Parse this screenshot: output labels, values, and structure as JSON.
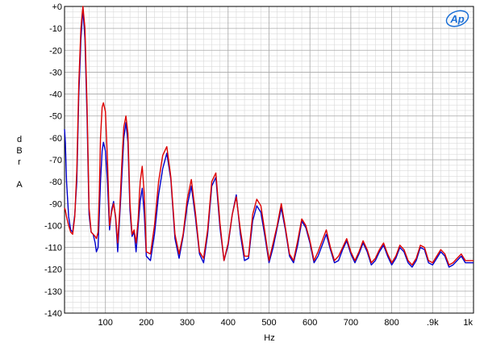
{
  "chart_data": {
    "type": "line",
    "title": "",
    "logo": "Ap",
    "xlabel": "Hz",
    "ylabel_lines": [
      "d",
      "B",
      "r",
      "",
      "A"
    ],
    "xlim": [
      0,
      1000
    ],
    "ylim": [
      -140,
      0
    ],
    "grid": true,
    "x_ticks": [
      {
        "value": 100,
        "label": "100"
      },
      {
        "value": 200,
        "label": "200"
      },
      {
        "value": 300,
        "label": "300"
      },
      {
        "value": 400,
        "label": "400"
      },
      {
        "value": 500,
        "label": "500"
      },
      {
        "value": 600,
        "label": "600"
      },
      {
        "value": 700,
        "label": "700"
      },
      {
        "value": 800,
        "label": "800"
      },
      {
        "value": 900,
        "label": ".9k"
      },
      {
        "value": 1000,
        "label": "1k"
      }
    ],
    "y_ticks": [
      {
        "value": 0,
        "label": "+0"
      },
      {
        "value": -10,
        "label": "-10"
      },
      {
        "value": -20,
        "label": "-20"
      },
      {
        "value": -30,
        "label": "-30"
      },
      {
        "value": -40,
        "label": "-40"
      },
      {
        "value": -50,
        "label": "-50"
      },
      {
        "value": -60,
        "label": "-60"
      },
      {
        "value": -70,
        "label": "-70"
      },
      {
        "value": -80,
        "label": "-80"
      },
      {
        "value": -90,
        "label": "-90"
      },
      {
        "value": -100,
        "label": "-100"
      },
      {
        "value": -110,
        "label": "-110"
      },
      {
        "value": -120,
        "label": "-120"
      },
      {
        "value": -130,
        "label": "-130"
      },
      {
        "value": -140,
        "label": "-140"
      }
    ],
    "series": [
      {
        "color": "#0000cc",
        "x": [
          0,
          2,
          5,
          10,
          15,
          20,
          25,
          30,
          35,
          40,
          45,
          50,
          55,
          60,
          65,
          70,
          75,
          78,
          82,
          85,
          88,
          92,
          95,
          100,
          105,
          110,
          115,
          120,
          125,
          130,
          135,
          140,
          145,
          150,
          155,
          160,
          165,
          170,
          175,
          180,
          185,
          190,
          195,
          200,
          210,
          220,
          230,
          240,
          250,
          260,
          270,
          280,
          290,
          300,
          310,
          320,
          330,
          340,
          350,
          360,
          370,
          380,
          390,
          400,
          410,
          420,
          430,
          440,
          450,
          460,
          470,
          480,
          490,
          500,
          510,
          520,
          530,
          540,
          550,
          560,
          570,
          580,
          590,
          600,
          610,
          620,
          630,
          640,
          650,
          660,
          670,
          680,
          690,
          700,
          710,
          720,
          730,
          740,
          750,
          760,
          770,
          780,
          790,
          800,
          810,
          820,
          830,
          840,
          850,
          860,
          870,
          880,
          890,
          900,
          910,
          920,
          930,
          940,
          950,
          960,
          970,
          980,
          990,
          1000
        ],
        "y": [
          -56,
          -62,
          -80,
          -96,
          -102,
          -103,
          -95,
          -80,
          -40,
          -15,
          -1,
          -15,
          -50,
          -95,
          -103,
          -104,
          -108,
          -112,
          -110,
          -95,
          -80,
          -66,
          -62,
          -66,
          -80,
          -102,
          -93,
          -89,
          -97,
          -112,
          -96,
          -78,
          -60,
          -53,
          -62,
          -93,
          -105,
          -103,
          -112,
          -100,
          -89,
          -83,
          -95,
          -114,
          -116,
          -104,
          -86,
          -74,
          -67,
          -79,
          -106,
          -115,
          -105,
          -91,
          -82,
          -96,
          -113,
          -117,
          -104,
          -82,
          -78,
          -101,
          -116,
          -109,
          -95,
          -86,
          -104,
          -116,
          -115,
          -98,
          -91,
          -94,
          -105,
          -117,
          -110,
          -101,
          -92,
          -102,
          -114,
          -117,
          -109,
          -98,
          -101,
          -108,
          -117,
          -114,
          -109,
          -104,
          -111,
          -117,
          -116,
          -111,
          -107,
          -113,
          -117,
          -113,
          -108,
          -112,
          -118,
          -116,
          -112,
          -109,
          -114,
          -118,
          -115,
          -110,
          -112,
          -117,
          -119,
          -116,
          -110,
          -111,
          -117,
          -118,
          -115,
          -112,
          -114,
          -119,
          -118,
          -116,
          -114,
          -117,
          -117,
          -117
        ]
      },
      {
        "color": "#dd0000",
        "x": [
          0,
          2,
          5,
          10,
          15,
          20,
          25,
          30,
          35,
          40,
          45,
          50,
          55,
          60,
          65,
          70,
          75,
          78,
          82,
          85,
          88,
          92,
          95,
          100,
          105,
          110,
          115,
          120,
          125,
          130,
          135,
          140,
          145,
          150,
          155,
          160,
          165,
          170,
          175,
          180,
          185,
          190,
          195,
          200,
          210,
          220,
          230,
          240,
          250,
          260,
          270,
          280,
          290,
          300,
          310,
          320,
          330,
          340,
          350,
          360,
          370,
          380,
          390,
          400,
          410,
          420,
          430,
          440,
          450,
          460,
          470,
          480,
          490,
          500,
          510,
          520,
          530,
          540,
          550,
          560,
          570,
          580,
          590,
          600,
          610,
          620,
          630,
          640,
          650,
          660,
          670,
          680,
          690,
          700,
          710,
          720,
          730,
          740,
          750,
          760,
          770,
          780,
          790,
          800,
          810,
          820,
          830,
          840,
          850,
          860,
          870,
          880,
          890,
          900,
          910,
          920,
          930,
          940,
          950,
          960,
          970,
          980,
          990,
          1000
        ],
        "y": [
          -92,
          -93,
          -96,
          -100,
          -103,
          -104,
          -96,
          -75,
          -35,
          -10,
          0,
          -10,
          -45,
          -92,
          -103,
          -104,
          -105,
          -106,
          -103,
          -85,
          -60,
          -46,
          -44,
          -48,
          -70,
          -100,
          -94,
          -90,
          -96,
          -108,
          -93,
          -72,
          -55,
          -50,
          -58,
          -90,
          -104,
          -102,
          -108,
          -97,
          -80,
          -73,
          -86,
          -112,
          -113,
          -100,
          -80,
          -68,
          -64,
          -78,
          -104,
          -113,
          -104,
          -88,
          -79,
          -94,
          -112,
          -115,
          -102,
          -80,
          -76,
          -99,
          -116,
          -108,
          -95,
          -87,
          -102,
          -114,
          -114,
          -95,
          -88,
          -91,
          -103,
          -116,
          -108,
          -100,
          -90,
          -101,
          -113,
          -116,
          -107,
          -97,
          -100,
          -107,
          -116,
          -112,
          -107,
          -102,
          -110,
          -116,
          -114,
          -110,
          -106,
          -112,
          -116,
          -112,
          -107,
          -111,
          -117,
          -115,
          -111,
          -108,
          -113,
          -117,
          -114,
          -109,
          -111,
          -116,
          -118,
          -115,
          -109,
          -110,
          -116,
          -117,
          -114,
          -111,
          -113,
          -118,
          -117,
          -115,
          -113,
          -116,
          -116,
          -116
        ]
      }
    ]
  }
}
